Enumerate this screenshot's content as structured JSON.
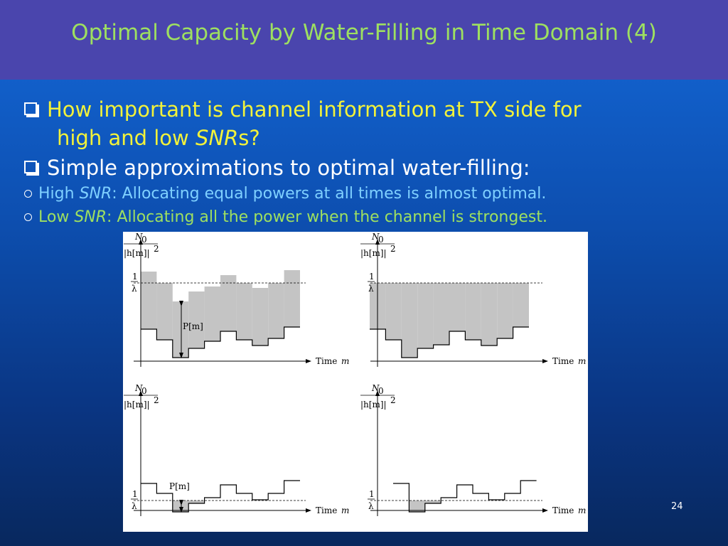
{
  "title": "Optimal Capacity by Water-Filling in Time Domain (4)",
  "bullets": [
    {
      "parts": [
        "How important is channel information at TX side for",
        "high and low ",
        "SNR",
        "s?"
      ]
    },
    {
      "parts": [
        "Simple approximations to optimal water-filling:"
      ]
    }
  ],
  "sub_bullets": [
    {
      "parts": [
        "High ",
        "SNR",
        ": Allocating equal powers at all times is almost optimal."
      ]
    },
    {
      "parts": [
        "Low ",
        "SNR",
        ": Allocating all the power when the channel is strongest."
      ]
    }
  ],
  "figure": {
    "panels": [
      {
        "noise_symbol": "N",
        "noise_subscript": "0",
        "gain": "|h[m]|",
        "gain_exponent": "2",
        "level_numerator": "1",
        "level_denominator": "λ",
        "x_label": "Time",
        "x_variable": "m",
        "power_label": "P[m]"
      },
      {
        "noise_symbol": "N",
        "noise_subscript": "0",
        "gain": "|h[m]|",
        "gain_exponent": "2",
        "level_numerator": "1",
        "level_denominator": "λ",
        "x_label": "Time",
        "x_variable": "m"
      },
      {
        "noise_symbol": "N",
        "noise_subscript": "0",
        "gain": "|h[m]|",
        "gain_exponent": "2",
        "level_numerator": "1",
        "level_denominator": "λ",
        "x_label": "Time",
        "x_variable": "m",
        "power_label": "P[m]"
      },
      {
        "noise_symbol": "N",
        "noise_subscript": "0",
        "gain": "|h[m]|",
        "gain_exponent": "2",
        "level_numerator": "1",
        "level_denominator": "λ",
        "x_label": "Time",
        "x_variable": "m"
      }
    ]
  },
  "page_number": "24"
}
